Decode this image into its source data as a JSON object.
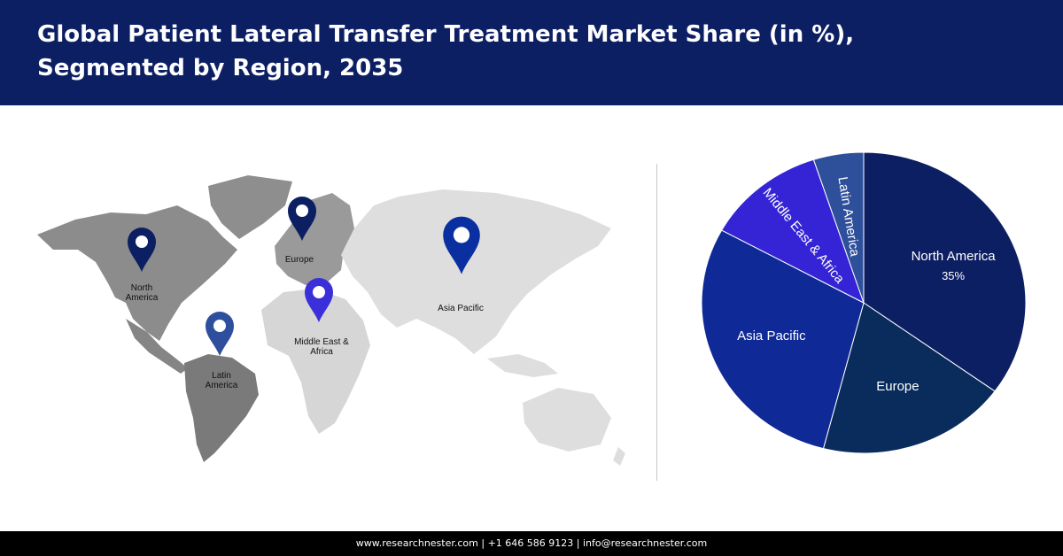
{
  "header": {
    "title": "Global Patient Lateral Transfer Treatment  Market Share (in %),\nSegmented by Region, 2035"
  },
  "map": {
    "markers": [
      {
        "id": "north-america",
        "label_lines": [
          "North",
          "America"
        ],
        "color": "#0d1f63"
      },
      {
        "id": "europe",
        "label_lines": [
          "Europe"
        ],
        "color": "#0d1f63"
      },
      {
        "id": "asia-pacific",
        "label_lines": [
          "Asia Pacific"
        ],
        "color": "#0a2fa0"
      },
      {
        "id": "middle-east-africa",
        "label_lines": [
          "Middle East &",
          "Africa"
        ],
        "color": "#3a2fd9"
      },
      {
        "id": "latin-america",
        "label_lines": [
          "Latin",
          "America"
        ],
        "color": "#2d4f9e"
      }
    ]
  },
  "chart_data": {
    "type": "pie",
    "title": "Global Patient Lateral Transfer Treatment  Market Share (in %), Segmented by Region, 2035",
    "slices": [
      {
        "name": "North America",
        "value": 35,
        "value_label": "35%",
        "color": "#0d1f63"
      },
      {
        "name": "Europe",
        "value": 19,
        "value_label": "",
        "color": "#0a2c5c"
      },
      {
        "name": "Asia Pacific",
        "value": 29,
        "value_label": "",
        "color": "#0f2a96"
      },
      {
        "name": "Middle East & Africa",
        "value": 12,
        "value_label": "",
        "color": "#3524d6"
      },
      {
        "name": "Latin America",
        "value": 5,
        "value_label": "",
        "color": "#2e4f9a"
      }
    ]
  },
  "footer": {
    "text": "www.researchnester.com | +1 646 586 9123 | info@researchnester.com"
  }
}
